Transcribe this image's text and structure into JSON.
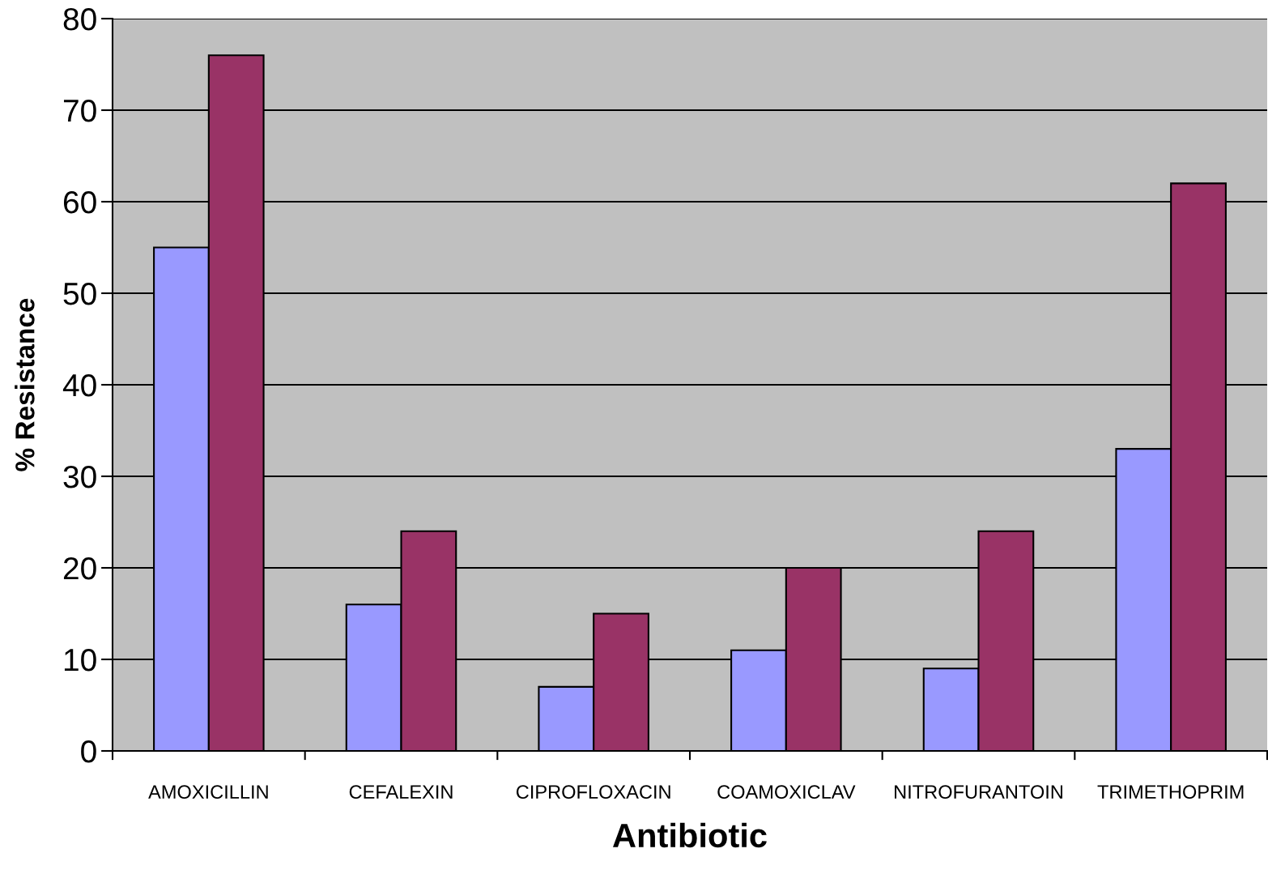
{
  "chart_data": {
    "type": "bar",
    "xlabel": "Antibiotic",
    "ylabel": "% Resistance",
    "categories": [
      "AMOXICILLIN",
      "CEFALEXIN",
      "CIPROFLOXACIN",
      "COAMOXICLAV",
      "NITROFURANTOIN",
      "TRIMETHOPRIM"
    ],
    "series": [
      {
        "color": "#9999ff",
        "values": [
          55,
          16,
          7,
          11,
          9,
          33
        ]
      },
      {
        "color": "#993366",
        "values": [
          76,
          24,
          15,
          20,
          24,
          62
        ]
      }
    ],
    "ylim": [
      0,
      80
    ],
    "yticks": [
      0,
      10,
      20,
      30,
      40,
      50,
      60,
      70,
      80
    ],
    "grid": "y"
  }
}
